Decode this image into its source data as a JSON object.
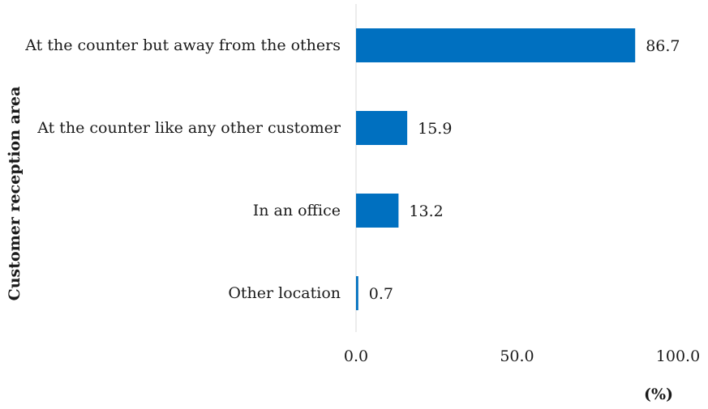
{
  "chart_data": {
    "type": "bar",
    "orientation": "horizontal",
    "categories": [
      "At the counter but away from the others",
      "At the counter like any other customer",
      "In an office",
      "Other location"
    ],
    "values": [
      86.7,
      15.9,
      13.2,
      0.7
    ],
    "data_labels": [
      "86.7",
      "15.9",
      "13.2",
      "0.7"
    ],
    "xlim": [
      0,
      100
    ],
    "xticks": [
      0,
      50,
      100
    ],
    "xtick_labels": [
      "0.0",
      "50.0",
      "100.0"
    ],
    "xlabel": "(%)",
    "ylabel": "Customer reception area",
    "bar_color": "#0070c0",
    "axis_line_color": "#d9d9d9",
    "grid": false,
    "legend": "none"
  }
}
